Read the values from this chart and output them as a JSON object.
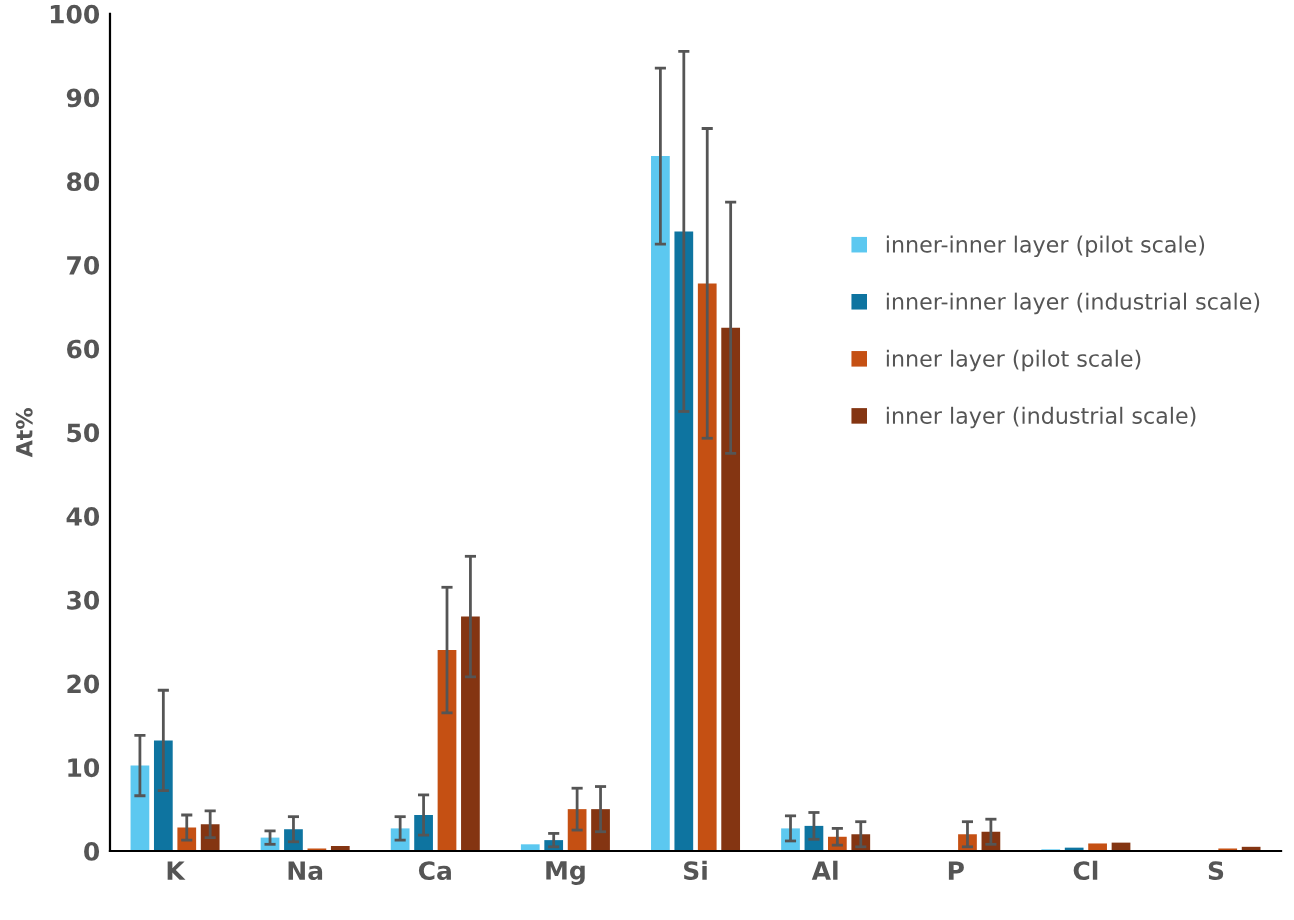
{
  "chart_data": {
    "type": "bar",
    "ylabel": "At%",
    "categories": [
      "K",
      "Na",
      "Ca",
      "Mg",
      "Si",
      "Al",
      "P",
      "Cl",
      "S"
    ],
    "series": [
      {
        "name": "inner-inner layer (pilot scale)",
        "color": "#5cc8f0",
        "values": [
          10.2,
          1.6,
          2.7,
          0.8,
          83,
          2.7,
          0,
          0.2,
          0
        ],
        "errors": [
          3.6,
          0.8,
          1.4,
          null,
          10.5,
          1.5,
          null,
          null,
          null
        ]
      },
      {
        "name": "inner-inner layer (industrial scale)",
        "color": "#0e74a0",
        "values": [
          13.2,
          2.6,
          4.3,
          1.3,
          74,
          3.0,
          0,
          0.4,
          0
        ],
        "errors": [
          6,
          1.5,
          2.4,
          0.8,
          21.5,
          1.6,
          null,
          null,
          null
        ]
      },
      {
        "name": "inner layer (pilot scale)",
        "color": "#c55013",
        "values": [
          2.8,
          0.3,
          24,
          5,
          67.8,
          1.7,
          2,
          0.9,
          0.3
        ],
        "errors": [
          1.5,
          null,
          7.5,
          2.5,
          18.5,
          1,
          1.5,
          null,
          null
        ]
      },
      {
        "name": "inner layer (industrial scale)",
        "color": "#843512",
        "values": [
          3.2,
          0.6,
          28,
          5,
          62.5,
          2,
          2.3,
          1,
          0.5
        ],
        "errors": [
          1.6,
          null,
          7.2,
          2.7,
          15,
          1.5,
          1.5,
          null,
          null
        ]
      }
    ],
    "ylim": [
      0,
      100
    ],
    "yticks": [
      0,
      10,
      20,
      30,
      40,
      50,
      60,
      70,
      80,
      90,
      100
    ],
    "grid": false,
    "legend": "right"
  }
}
